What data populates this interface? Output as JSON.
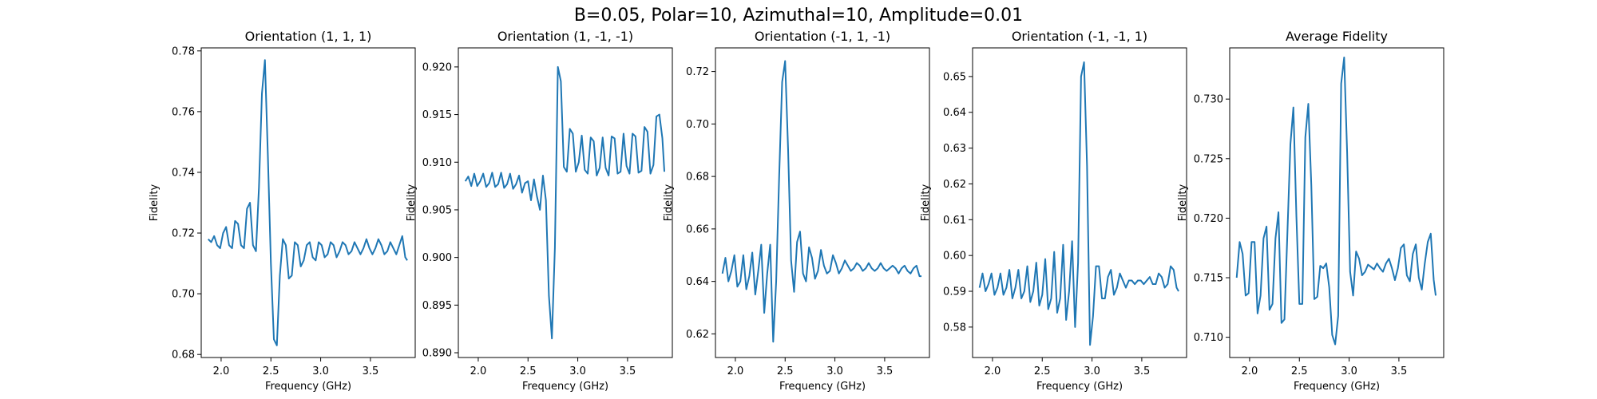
{
  "figure": {
    "suptitle": "B=0.05, Polar=10, Azimuthal=10, Amplitude=0.01"
  },
  "chart_data": [
    {
      "type": "line",
      "title": "Orientation (1, 1, 1)",
      "xlabel": "Frequency (GHz)",
      "ylabel": "Fidelity",
      "xlim": [
        1.8,
        3.95
      ],
      "ylim": [
        0.679,
        0.781
      ],
      "xticks": [
        2.0,
        2.5,
        3.0,
        3.5
      ],
      "xtick_labels": [
        "2.0",
        "2.5",
        "3.0",
        "3.5"
      ],
      "yticks": [
        0.68,
        0.7,
        0.72,
        0.74,
        0.76,
        0.78
      ],
      "ytick_labels": [
        "0.68",
        "0.70",
        "0.72",
        "0.74",
        "0.76",
        "0.78"
      ],
      "series": [
        {
          "name": "Orientation (1, 1, 1)",
          "x": [
            1.87,
            1.9,
            1.93,
            1.96,
            1.99,
            2.02,
            2.05,
            2.08,
            2.11,
            2.14,
            2.17,
            2.2,
            2.23,
            2.26,
            2.29,
            2.32,
            2.35,
            2.38,
            2.41,
            2.44,
            2.47,
            2.5,
            2.53,
            2.56,
            2.59,
            2.62,
            2.65,
            2.68,
            2.71,
            2.74,
            2.77,
            2.8,
            2.83,
            2.86,
            2.89,
            2.92,
            2.95,
            2.98,
            3.01,
            3.04,
            3.07,
            3.1,
            3.13,
            3.16,
            3.19,
            3.22,
            3.25,
            3.28,
            3.31,
            3.34,
            3.37,
            3.4,
            3.43,
            3.46,
            3.49,
            3.52,
            3.55,
            3.58,
            3.61,
            3.64,
            3.67,
            3.7,
            3.73,
            3.76,
            3.79,
            3.82,
            3.85,
            3.87
          ],
          "y": [
            0.718,
            0.717,
            0.719,
            0.716,
            0.715,
            0.72,
            0.722,
            0.716,
            0.715,
            0.724,
            0.723,
            0.716,
            0.715,
            0.728,
            0.73,
            0.716,
            0.714,
            0.735,
            0.766,
            0.777,
            0.745,
            0.71,
            0.685,
            0.683,
            0.706,
            0.718,
            0.716,
            0.705,
            0.706,
            0.717,
            0.716,
            0.709,
            0.711,
            0.716,
            0.717,
            0.712,
            0.711,
            0.717,
            0.716,
            0.712,
            0.713,
            0.717,
            0.716,
            0.712,
            0.714,
            0.717,
            0.716,
            0.713,
            0.714,
            0.717,
            0.715,
            0.713,
            0.715,
            0.718,
            0.715,
            0.713,
            0.715,
            0.718,
            0.716,
            0.713,
            0.714,
            0.717,
            0.715,
            0.713,
            0.716,
            0.719,
            0.712,
            0.711
          ]
        }
      ]
    },
    {
      "type": "line",
      "title": "Orientation (1, -1, -1)",
      "xlabel": "Frequency (GHz)",
      "ylabel": "Fidelity",
      "xlim": [
        1.8,
        3.95
      ],
      "ylim": [
        0.8895,
        0.922
      ],
      "xticks": [
        2.0,
        2.5,
        3.0,
        3.5
      ],
      "xtick_labels": [
        "2.0",
        "2.5",
        "3.0",
        "3.5"
      ],
      "yticks": [
        0.89,
        0.895,
        0.9,
        0.905,
        0.91,
        0.915,
        0.92
      ],
      "ytick_labels": [
        "0.890",
        "0.895",
        "0.900",
        "0.905",
        "0.910",
        "0.915",
        "0.920"
      ],
      "series": [
        {
          "name": "Orientation (1, -1, -1)",
          "x": [
            1.87,
            1.9,
            1.93,
            1.96,
            1.99,
            2.02,
            2.05,
            2.08,
            2.11,
            2.14,
            2.17,
            2.2,
            2.23,
            2.26,
            2.29,
            2.32,
            2.35,
            2.38,
            2.41,
            2.44,
            2.47,
            2.5,
            2.53,
            2.56,
            2.59,
            2.62,
            2.65,
            2.68,
            2.71,
            2.74,
            2.77,
            2.8,
            2.83,
            2.86,
            2.89,
            2.92,
            2.95,
            2.98,
            3.01,
            3.04,
            3.07,
            3.1,
            3.13,
            3.16,
            3.19,
            3.22,
            3.25,
            3.28,
            3.31,
            3.34,
            3.37,
            3.4,
            3.43,
            3.46,
            3.49,
            3.52,
            3.55,
            3.58,
            3.61,
            3.64,
            3.67,
            3.7,
            3.73,
            3.76,
            3.79,
            3.82,
            3.85,
            3.87
          ],
          "y": [
            0.908,
            0.9085,
            0.9075,
            0.9088,
            0.9075,
            0.908,
            0.9088,
            0.9074,
            0.9078,
            0.9089,
            0.9074,
            0.9077,
            0.9089,
            0.9073,
            0.9077,
            0.9088,
            0.9072,
            0.9077,
            0.9086,
            0.9068,
            0.9078,
            0.908,
            0.906,
            0.9082,
            0.9064,
            0.905,
            0.9086,
            0.906,
            0.896,
            0.8915,
            0.901,
            0.92,
            0.9185,
            0.9095,
            0.909,
            0.9135,
            0.913,
            0.909,
            0.91,
            0.9128,
            0.9092,
            0.9088,
            0.9126,
            0.9122,
            0.9086,
            0.9094,
            0.9126,
            0.9094,
            0.9086,
            0.9127,
            0.9125,
            0.9088,
            0.909,
            0.913,
            0.9096,
            0.9088,
            0.913,
            0.9127,
            0.9089,
            0.9091,
            0.9137,
            0.9132,
            0.9088,
            0.9097,
            0.9148,
            0.915,
            0.9125,
            0.909
          ]
        }
      ]
    },
    {
      "type": "line",
      "title": "Orientation (-1, 1, -1)",
      "xlabel": "Frequency (GHz)",
      "ylabel": "Fidelity",
      "xlim": [
        1.8,
        3.95
      ],
      "ylim": [
        0.611,
        0.729
      ],
      "xticks": [
        2.0,
        2.5,
        3.0,
        3.5
      ],
      "xtick_labels": [
        "2.0",
        "2.5",
        "3.0",
        "3.5"
      ],
      "yticks": [
        0.62,
        0.64,
        0.66,
        0.68,
        0.7,
        0.72
      ],
      "ytick_labels": [
        "0.62",
        "0.64",
        "0.66",
        "0.68",
        "0.70",
        "0.72"
      ],
      "series": [
        {
          "name": "Orientation (-1, 1, -1)",
          "x": [
            1.87,
            1.9,
            1.93,
            1.96,
            1.99,
            2.02,
            2.05,
            2.08,
            2.11,
            2.14,
            2.17,
            2.2,
            2.23,
            2.26,
            2.29,
            2.32,
            2.35,
            2.38,
            2.41,
            2.44,
            2.47,
            2.5,
            2.53,
            2.56,
            2.59,
            2.62,
            2.65,
            2.68,
            2.71,
            2.74,
            2.77,
            2.8,
            2.83,
            2.86,
            2.89,
            2.92,
            2.95,
            2.98,
            3.01,
            3.04,
            3.07,
            3.1,
            3.13,
            3.16,
            3.19,
            3.22,
            3.25,
            3.28,
            3.31,
            3.34,
            3.37,
            3.4,
            3.43,
            3.46,
            3.49,
            3.52,
            3.55,
            3.58,
            3.61,
            3.64,
            3.67,
            3.7,
            3.73,
            3.76,
            3.79,
            3.82,
            3.85,
            3.87
          ],
          "y": [
            0.643,
            0.649,
            0.64,
            0.644,
            0.65,
            0.638,
            0.64,
            0.65,
            0.637,
            0.642,
            0.651,
            0.635,
            0.644,
            0.654,
            0.628,
            0.643,
            0.654,
            0.617,
            0.64,
            0.68,
            0.716,
            0.724,
            0.69,
            0.648,
            0.636,
            0.655,
            0.659,
            0.643,
            0.64,
            0.653,
            0.649,
            0.641,
            0.644,
            0.652,
            0.646,
            0.643,
            0.644,
            0.65,
            0.647,
            0.643,
            0.645,
            0.648,
            0.646,
            0.644,
            0.645,
            0.647,
            0.646,
            0.644,
            0.645,
            0.647,
            0.645,
            0.644,
            0.645,
            0.647,
            0.645,
            0.644,
            0.645,
            0.646,
            0.645,
            0.643,
            0.645,
            0.646,
            0.644,
            0.643,
            0.645,
            0.646,
            0.642,
            0.642
          ]
        }
      ]
    },
    {
      "type": "line",
      "title": "Orientation (-1, -1, 1)",
      "xlabel": "Frequency (GHz)",
      "ylabel": "Fidelity",
      "xlim": [
        1.8,
        3.95
      ],
      "ylim": [
        0.5715,
        0.658
      ],
      "xticks": [
        2.0,
        2.5,
        3.0,
        3.5
      ],
      "xtick_labels": [
        "2.0",
        "2.5",
        "3.0",
        "3.5"
      ],
      "yticks": [
        0.58,
        0.59,
        0.6,
        0.61,
        0.62,
        0.63,
        0.64,
        0.65
      ],
      "ytick_labels": [
        "0.58",
        "0.59",
        "0.60",
        "0.61",
        "0.62",
        "0.63",
        "0.64",
        "0.65"
      ],
      "series": [
        {
          "name": "Orientation (-1, -1, 1)",
          "x": [
            1.87,
            1.9,
            1.93,
            1.96,
            1.99,
            2.02,
            2.05,
            2.08,
            2.11,
            2.14,
            2.17,
            2.2,
            2.23,
            2.26,
            2.29,
            2.32,
            2.35,
            2.38,
            2.41,
            2.44,
            2.47,
            2.5,
            2.53,
            2.56,
            2.59,
            2.62,
            2.65,
            2.68,
            2.71,
            2.74,
            2.77,
            2.8,
            2.83,
            2.86,
            2.89,
            2.92,
            2.95,
            2.98,
            3.01,
            3.04,
            3.07,
            3.1,
            3.13,
            3.16,
            3.19,
            3.22,
            3.25,
            3.28,
            3.31,
            3.34,
            3.37,
            3.4,
            3.43,
            3.46,
            3.49,
            3.52,
            3.55,
            3.58,
            3.61,
            3.64,
            3.67,
            3.7,
            3.73,
            3.76,
            3.79,
            3.82,
            3.85,
            3.87
          ],
          "y": [
            0.591,
            0.595,
            0.59,
            0.592,
            0.595,
            0.589,
            0.591,
            0.595,
            0.589,
            0.591,
            0.596,
            0.588,
            0.591,
            0.596,
            0.588,
            0.59,
            0.597,
            0.587,
            0.59,
            0.598,
            0.586,
            0.589,
            0.599,
            0.585,
            0.588,
            0.601,
            0.584,
            0.588,
            0.603,
            0.582,
            0.59,
            0.604,
            0.58,
            0.598,
            0.65,
            0.654,
            0.625,
            0.575,
            0.583,
            0.597,
            0.597,
            0.588,
            0.588,
            0.594,
            0.596,
            0.589,
            0.591,
            0.595,
            0.593,
            0.591,
            0.593,
            0.593,
            0.592,
            0.593,
            0.593,
            0.592,
            0.593,
            0.594,
            0.592,
            0.592,
            0.595,
            0.594,
            0.591,
            0.592,
            0.597,
            0.596,
            0.591,
            0.59
          ]
        }
      ]
    },
    {
      "type": "line",
      "title": "Average Fidelity",
      "xlabel": "Frequency (GHz)",
      "ylabel": "Fidelity",
      "xlim": [
        1.8,
        3.95
      ],
      "ylim": [
        0.7083,
        0.7343
      ],
      "xticks": [
        2.0,
        2.5,
        3.0,
        3.5
      ],
      "xtick_labels": [
        "2.0",
        "2.5",
        "3.0",
        "3.5"
      ],
      "yticks": [
        0.71,
        0.715,
        0.72,
        0.725,
        0.73
      ],
      "ytick_labels": [
        "0.710",
        "0.715",
        "0.720",
        "0.725",
        "0.730"
      ],
      "series": [
        {
          "name": "Average Fidelity",
          "x": [
            1.87,
            1.9,
            1.93,
            1.96,
            1.99,
            2.02,
            2.05,
            2.08,
            2.11,
            2.14,
            2.17,
            2.2,
            2.23,
            2.26,
            2.29,
            2.32,
            2.35,
            2.38,
            2.41,
            2.44,
            2.47,
            2.5,
            2.53,
            2.56,
            2.59,
            2.62,
            2.65,
            2.68,
            2.71,
            2.74,
            2.77,
            2.8,
            2.83,
            2.86,
            2.89,
            2.92,
            2.95,
            2.98,
            3.01,
            3.04,
            3.07,
            3.1,
            3.13,
            3.16,
            3.19,
            3.22,
            3.25,
            3.28,
            3.31,
            3.34,
            3.37,
            3.4,
            3.43,
            3.46,
            3.49,
            3.52,
            3.55,
            3.58,
            3.61,
            3.64,
            3.67,
            3.7,
            3.73,
            3.76,
            3.79,
            3.82,
            3.85,
            3.87
          ],
          "y": [
            0.715,
            0.718,
            0.717,
            0.7135,
            0.7137,
            0.718,
            0.718,
            0.712,
            0.7135,
            0.7183,
            0.7193,
            0.7123,
            0.7128,
            0.7183,
            0.7205,
            0.7112,
            0.7115,
            0.7188,
            0.7262,
            0.7293,
            0.7202,
            0.7128,
            0.7128,
            0.7268,
            0.7296,
            0.7228,
            0.7132,
            0.7134,
            0.716,
            0.7158,
            0.7162,
            0.7142,
            0.7102,
            0.7094,
            0.7118,
            0.7313,
            0.7335,
            0.7255,
            0.7155,
            0.7135,
            0.7172,
            0.7166,
            0.7152,
            0.7155,
            0.7161,
            0.7159,
            0.7157,
            0.7162,
            0.7158,
            0.7155,
            0.7162,
            0.7166,
            0.7158,
            0.7148,
            0.7158,
            0.7175,
            0.7178,
            0.7152,
            0.7147,
            0.717,
            0.7178,
            0.715,
            0.714,
            0.7162,
            0.718,
            0.7187,
            0.7148,
            0.7135
          ]
        }
      ]
    }
  ]
}
